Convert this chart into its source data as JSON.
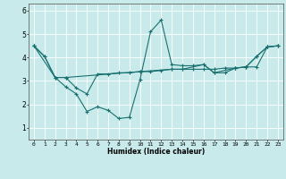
{
  "background_color": "#c8eaea",
  "grid_color": "#ffffff",
  "line_color": "#1a7070",
  "xlabel": "Humidex (Indice chaleur)",
  "xlim": [
    -0.5,
    23.5
  ],
  "ylim": [
    0.5,
    6.3
  ],
  "yticks": [
    1,
    2,
    3,
    4,
    5,
    6
  ],
  "xticks": [
    0,
    1,
    2,
    3,
    4,
    5,
    6,
    7,
    8,
    9,
    10,
    11,
    12,
    13,
    14,
    15,
    16,
    17,
    18,
    19,
    20,
    21,
    22,
    23
  ],
  "lines": [
    {
      "x": [
        0,
        1,
        2,
        3,
        4,
        5,
        6,
        7,
        8,
        9,
        10,
        11,
        12,
        13,
        14,
        15,
        16,
        17,
        18,
        19,
        20,
        21,
        22,
        23
      ],
      "y": [
        4.5,
        4.05,
        3.15,
        2.75,
        2.45,
        1.7,
        1.9,
        1.75,
        1.4,
        1.45,
        3.05,
        5.1,
        5.6,
        3.7,
        3.65,
        3.65,
        3.7,
        3.35,
        3.35,
        3.55,
        3.6,
        4.05,
        4.45,
        4.5
      ]
    },
    {
      "x": [
        0,
        1,
        2,
        3,
        4,
        5,
        6,
        7,
        8,
        9,
        10,
        11,
        12,
        13,
        14,
        15,
        16,
        17,
        18,
        19,
        20,
        21,
        22,
        23
      ],
      "y": [
        4.5,
        4.05,
        3.15,
        3.15,
        2.7,
        2.45,
        3.3,
        3.3,
        3.35,
        3.35,
        3.4,
        3.4,
        3.45,
        3.5,
        3.5,
        3.5,
        3.5,
        3.5,
        3.55,
        3.55,
        3.6,
        3.6,
        4.45,
        4.5
      ]
    },
    {
      "x": [
        0,
        2,
        3,
        10,
        13,
        14,
        16,
        17,
        19,
        20,
        21,
        22,
        23
      ],
      "y": [
        4.5,
        3.15,
        3.15,
        3.4,
        3.5,
        3.5,
        3.7,
        3.35,
        3.55,
        3.6,
        4.05,
        4.45,
        4.5
      ]
    }
  ]
}
